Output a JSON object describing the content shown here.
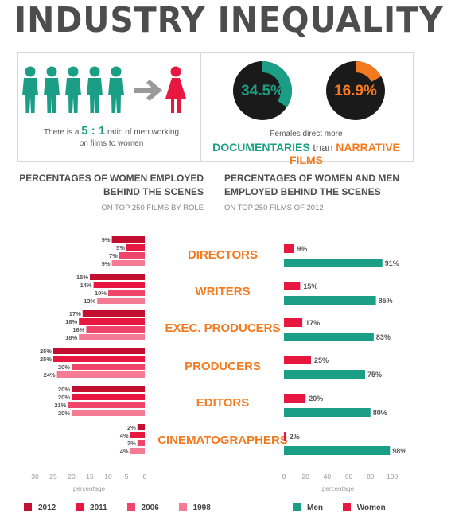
{
  "title": "INDUSTRY INEQUALITY",
  "ratio": {
    "prefix": "There is a ",
    "men": "5",
    "sep": " : ",
    "women": "1",
    "suffix1": " ratio of men working",
    "suffix2": "on films to women"
  },
  "donuts": [
    {
      "label": "34.5%",
      "value": 34.5,
      "color": "#1a9e85"
    },
    {
      "label": "16.9%",
      "value": 16.9,
      "color": "#f47a1f"
    }
  ],
  "females_text": "Females direct more",
  "doc_text": {
    "a": "DOCUMENTARIES",
    "b": " than ",
    "c": "NARRATIVE FILMS"
  },
  "left_header": {
    "line1": "PERCENTAGES OF WOMEN EMPLOYED",
    "line2": "BEHIND THE SCENES",
    "sub": "ON TOP 250 FILMS BY ROLE"
  },
  "right_header": {
    "line1": "PERCENTAGES OF WOMEN AND MEN",
    "line2": "EMPLOYED BEHIND THE SCENES",
    "sub": "ON TOP 250 FILMS OF 2012"
  },
  "colors": {
    "teal": "#1a9e85",
    "red": "#e8173f",
    "y2012": "#c20f2f",
    "y2011": "#e8173f",
    "y2006": "#f0456b",
    "y1998": "#f57a94",
    "orange": "#f47a1f"
  },
  "chart_data": [
    {
      "type": "bar",
      "orientation": "horizontal-reversed",
      "categories": [
        "DIRECTORS",
        "WRITERS",
        "EXEC. PRODUCERS",
        "PRODUCERS",
        "EDITORS",
        "CINEMATOGRAPHERS"
      ],
      "series": [
        {
          "name": "2012",
          "values": [
            9,
            15,
            17,
            25,
            20,
            2
          ]
        },
        {
          "name": "2011",
          "values": [
            5,
            14,
            18,
            25,
            20,
            4
          ]
        },
        {
          "name": "2006",
          "values": [
            7,
            10,
            16,
            20,
            21,
            2
          ]
        },
        {
          "name": "1998",
          "values": [
            9,
            13,
            18,
            24,
            20,
            4
          ]
        }
      ],
      "xticks": [
        "30",
        "25",
        "20",
        "15",
        "10",
        "5",
        "0"
      ],
      "xlabel": "percentage",
      "xlim": [
        0,
        30
      ],
      "legend": "bottom-left"
    },
    {
      "type": "bar",
      "orientation": "horizontal",
      "categories": [
        "DIRECTORS",
        "WRITERS",
        "EXEC. PRODUCERS",
        "PRODUCERS",
        "EDITORS",
        "CINEMATOGRAPHERS"
      ],
      "series": [
        {
          "name": "Women",
          "values": [
            9,
            15,
            17,
            25,
            20,
            2
          ]
        },
        {
          "name": "Men",
          "values": [
            91,
            85,
            83,
            75,
            80,
            98
          ]
        }
      ],
      "xticks": [
        "0",
        "20",
        "40",
        "60",
        "80",
        "100"
      ],
      "xlabel": "percentage",
      "xlim": [
        0,
        100
      ],
      "legend": "bottom-right"
    }
  ],
  "legend_left": [
    "2012",
    "2011",
    "2006",
    "1998"
  ],
  "legend_right": [
    "Men",
    "Women"
  ]
}
